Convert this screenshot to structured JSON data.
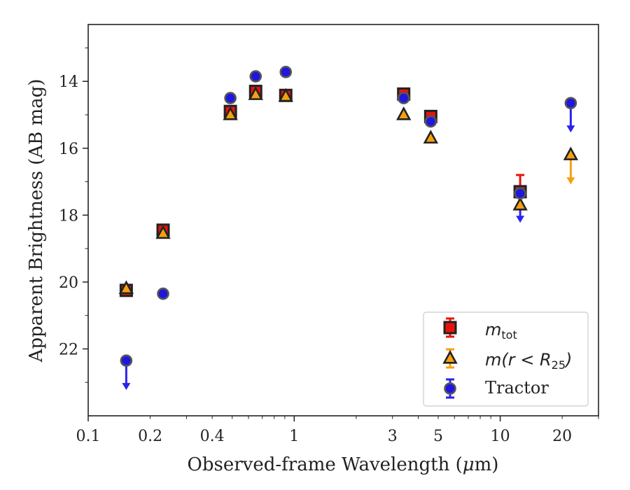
{
  "chart_data": {
    "type": "scatter",
    "xlabel_pre": "Observed-frame Wavelength (",
    "xlabel_mu": "μ",
    "xlabel_post": "m)",
    "ylabel": "Apparent Brightness (AB mag)",
    "x_scale": "log",
    "xlim": [
      0.1,
      30
    ],
    "ylim": [
      24,
      12.3
    ],
    "y_inverted": true,
    "grid": false,
    "legend_position": "bottom-right",
    "x_ticks": [
      {
        "value": 0.1,
        "label": "0.1"
      },
      {
        "value": 0.2,
        "label": "0.2"
      },
      {
        "value": 0.4,
        "label": "0.4"
      },
      {
        "value": 1,
        "label": "1"
      },
      {
        "value": 3,
        "label": "3"
      },
      {
        "value": 5,
        "label": "5"
      },
      {
        "value": 10,
        "label": "10"
      },
      {
        "value": 20,
        "label": "20"
      }
    ],
    "y_ticks": [
      {
        "value": 14,
        "label": "14"
      },
      {
        "value": 16,
        "label": "16"
      },
      {
        "value": 18,
        "label": "18"
      },
      {
        "value": 20,
        "label": "20"
      },
      {
        "value": 22,
        "label": "22"
      }
    ],
    "series": [
      {
        "key": "mtot",
        "legend_math": "m",
        "legend_sub": "tot",
        "marker": "square",
        "color": "#e8120c",
        "errcolor": "#e8120c",
        "points": [
          {
            "x": 0.153,
            "y": 20.25
          },
          {
            "x": 0.231,
            "y": 18.45
          },
          {
            "x": 0.49,
            "y": 14.9
          },
          {
            "x": 0.65,
            "y": 14.3
          },
          {
            "x": 0.91,
            "y": 14.42
          },
          {
            "x": 3.4,
            "y": 14.38
          },
          {
            "x": 4.6,
            "y": 15.05
          },
          {
            "x": 12.5,
            "y": 17.3,
            "yerr": 0.5
          }
        ]
      },
      {
        "key": "mr25",
        "legend_math": "m(r < R",
        "legend_sub": "25",
        "legend_tail": ")",
        "marker": "triangle",
        "color": "#f5a10e",
        "errcolor": "#f5a10e",
        "points": [
          {
            "x": 0.153,
            "y": 20.2
          },
          {
            "x": 0.231,
            "y": 18.55
          },
          {
            "x": 0.49,
            "y": 15.0
          },
          {
            "x": 0.65,
            "y": 14.4
          },
          {
            "x": 0.91,
            "y": 14.45
          },
          {
            "x": 3.4,
            "y": 15.0
          },
          {
            "x": 4.6,
            "y": 15.7
          },
          {
            "x": 12.5,
            "y": 17.7
          },
          {
            "x": 22.0,
            "y": 16.2,
            "upper_limit": true
          }
        ]
      },
      {
        "key": "tractor",
        "legend_label": "Tractor",
        "marker": "circle",
        "color": "#1f16e0",
        "errcolor": "#2a22f0",
        "points": [
          {
            "x": 0.153,
            "y": 22.35,
            "upper_limit": true
          },
          {
            "x": 0.231,
            "y": 20.35
          },
          {
            "x": 0.49,
            "y": 14.5
          },
          {
            "x": 0.65,
            "y": 13.85
          },
          {
            "x": 0.91,
            "y": 13.72
          },
          {
            "x": 3.4,
            "y": 14.5
          },
          {
            "x": 4.6,
            "y": 15.2
          },
          {
            "x": 12.5,
            "y": 17.35,
            "upper_limit": true
          },
          {
            "x": 22.0,
            "y": 14.65,
            "upper_limit": true
          }
        ]
      }
    ]
  }
}
